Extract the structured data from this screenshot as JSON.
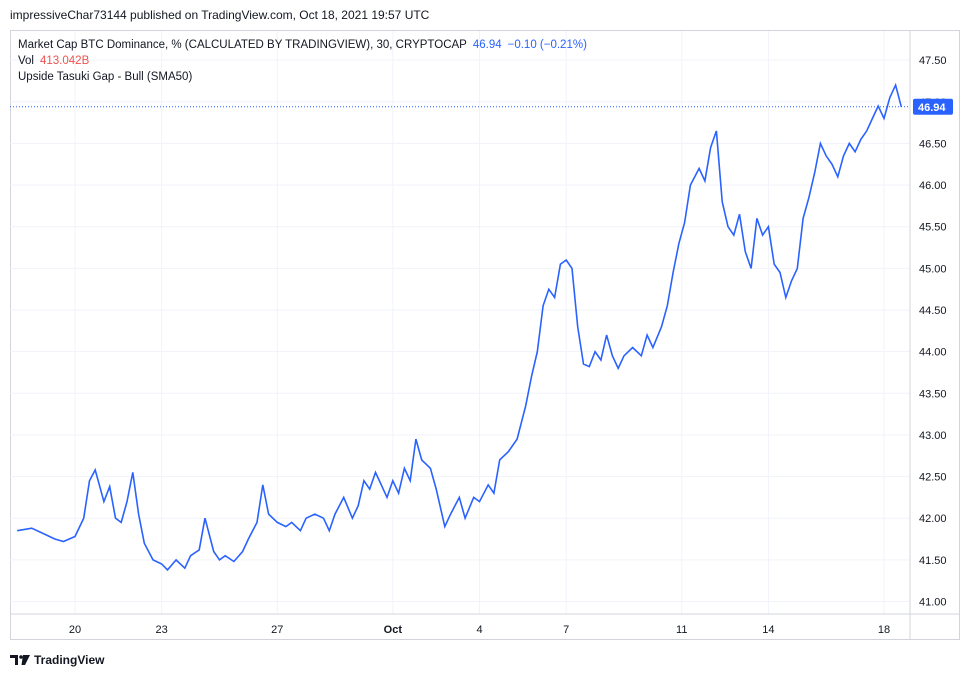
{
  "header": {
    "publish_line": "impressiveChar73144 published on TradingView.com, Oct 18, 2021 19:57 UTC"
  },
  "legend": {
    "symbol_line": "Market Cap BTC Dominance, % (CALCULATED BY TRADINGVIEW), 30, CRYPTOCAP",
    "last_value": "46.94",
    "change": "−0.10 (−0.21%)",
    "vol_label": "Vol",
    "vol_value": "413.042B",
    "indicator": "Upside Tasuki Gap - Bull (SMA50)"
  },
  "footer": {
    "brand": "TradingView"
  },
  "colors": {
    "line": "#2962ff",
    "vol": "#ef5350",
    "grid": "#f0f3fa",
    "axis_text": "#131722"
  },
  "chart_data": {
    "type": "line",
    "title": "Market Cap BTC Dominance, % (CALCULATED BY TRADINGVIEW), 30, CRYPTOCAP",
    "xlabel": "",
    "ylabel": "",
    "ylim": [
      40.85,
      47.85
    ],
    "y_ticks": [
      "41.00",
      "41.50",
      "42.00",
      "42.50",
      "43.00",
      "43.50",
      "44.00",
      "44.50",
      "45.00",
      "45.50",
      "46.00",
      "46.50",
      "47.00",
      "47.50"
    ],
    "x_ticks": [
      {
        "label": "20",
        "day": 2
      },
      {
        "label": "23",
        "day": 5
      },
      {
        "label": "27",
        "day": 9
      },
      {
        "label": "Oct",
        "day": 13
      },
      {
        "label": "4",
        "day": 16
      },
      {
        "label": "7",
        "day": 19
      },
      {
        "label": "11",
        "day": 23
      },
      {
        "label": "14",
        "day": 26
      },
      {
        "label": "18",
        "day": 30
      }
    ],
    "last_price_label": "46.94",
    "grid": true,
    "series": [
      {
        "x": [
          0.0,
          0.5,
          1.0,
          1.3,
          1.6,
          2.0,
          2.3,
          2.5,
          2.7,
          3.0,
          3.2,
          3.4,
          3.6,
          3.8,
          4.0,
          4.2,
          4.4,
          4.7,
          5.0,
          5.2,
          5.5,
          5.8,
          6.0,
          6.3,
          6.5,
          6.8,
          7.0,
          7.2,
          7.5,
          7.8,
          8.0,
          8.3,
          8.5,
          8.7,
          9.0,
          9.3,
          9.5,
          9.8,
          10.0,
          10.3,
          10.6,
          10.8,
          11.0,
          11.3,
          11.6,
          11.8,
          12.0,
          12.2,
          12.4,
          12.6,
          12.8,
          13.0,
          13.2,
          13.4,
          13.6,
          13.8,
          14.0,
          14.3,
          14.5,
          14.8,
          15.0,
          15.3,
          15.5,
          15.8,
          16.0,
          16.3,
          16.5,
          16.7,
          17.0,
          17.3,
          17.6,
          17.8,
          18.0,
          18.2,
          18.4,
          18.6,
          18.8,
          19.0,
          19.2,
          19.4,
          19.6,
          19.8,
          20.0,
          20.2,
          20.4,
          20.6,
          20.8,
          21.0,
          21.3,
          21.6,
          21.8,
          22.0,
          22.3,
          22.5,
          22.7,
          22.9,
          23.1,
          23.3,
          23.6,
          23.8,
          24.0,
          24.2,
          24.4,
          24.6,
          24.8,
          25.0,
          25.2,
          25.4,
          25.6,
          25.8,
          26.0,
          26.2,
          26.4,
          26.6,
          26.8,
          27.0,
          27.2,
          27.4,
          27.6,
          27.8,
          28.0,
          28.2,
          28.4,
          28.6,
          28.8,
          29.0,
          29.2,
          29.4,
          29.6,
          29.8,
          30.0,
          30.2,
          30.4,
          30.6
        ],
        "y": [
          41.85,
          41.88,
          41.8,
          41.75,
          41.72,
          41.78,
          42.0,
          42.45,
          42.58,
          42.2,
          42.38,
          42.0,
          41.95,
          42.2,
          42.55,
          42.05,
          41.7,
          41.5,
          41.45,
          41.38,
          41.5,
          41.4,
          41.55,
          41.62,
          42.0,
          41.6,
          41.5,
          41.55,
          41.48,
          41.6,
          41.75,
          41.95,
          42.4,
          42.05,
          41.95,
          41.9,
          41.95,
          41.85,
          42.0,
          42.05,
          42.0,
          41.85,
          42.05,
          42.25,
          42.0,
          42.15,
          42.45,
          42.35,
          42.55,
          42.4,
          42.25,
          42.45,
          42.3,
          42.6,
          42.45,
          42.95,
          42.7,
          42.6,
          42.35,
          41.9,
          42.05,
          42.25,
          42.0,
          42.25,
          42.2,
          42.4,
          42.3,
          42.7,
          42.8,
          42.95,
          43.35,
          43.7,
          44.0,
          44.55,
          44.75,
          44.65,
          45.05,
          45.1,
          45.0,
          44.3,
          43.85,
          43.82,
          44.0,
          43.9,
          44.2,
          43.95,
          43.8,
          43.95,
          44.05,
          43.95,
          44.2,
          44.05,
          44.3,
          44.55,
          44.95,
          45.3,
          45.55,
          46.0,
          46.2,
          46.05,
          46.45,
          46.65,
          45.8,
          45.5,
          45.4,
          45.65,
          45.2,
          45.0,
          45.6,
          45.4,
          45.5,
          45.05,
          44.95,
          44.65,
          44.85,
          45.0,
          45.6,
          45.85,
          46.15,
          46.5,
          46.35,
          46.25,
          46.1,
          46.35,
          46.5,
          46.4,
          46.55,
          46.65,
          46.8,
          46.95,
          46.8,
          47.05,
          47.2,
          46.94
        ]
      }
    ]
  }
}
